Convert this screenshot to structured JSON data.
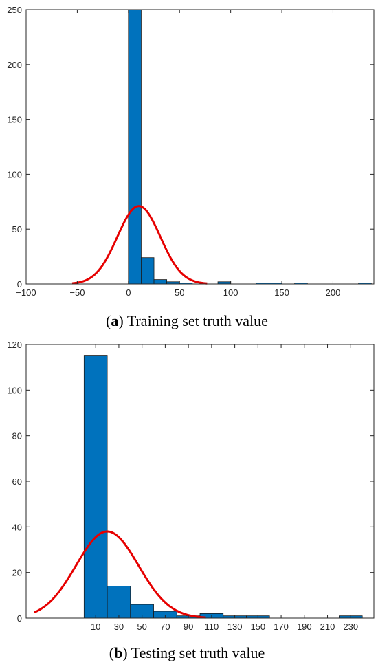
{
  "colors": {
    "bar": "#0072BD",
    "curve": "#E60000",
    "axis": "#262626"
  },
  "captions": [
    {
      "letter": "a",
      "text": "Training set truth value"
    },
    {
      "letter": "b",
      "text": "Testing set truth value"
    }
  ],
  "chart_data": [
    {
      "type": "bar",
      "xlim": [
        -100,
        240
      ],
      "ylim": [
        0,
        250
      ],
      "xticks": [
        -100,
        -50,
        0,
        50,
        100,
        150,
        200
      ],
      "xtick_labels": [
        "−100",
        "−50",
        "0",
        "50",
        "100",
        "150",
        "200"
      ],
      "yticks": [
        0,
        50,
        100,
        150,
        200,
        250
      ],
      "grid": false,
      "bins": [
        {
          "x0": 0,
          "x1": 12.5,
          "count": 250
        },
        {
          "x0": 12.5,
          "x1": 25,
          "count": 24
        },
        {
          "x0": 25,
          "x1": 37.5,
          "count": 4
        },
        {
          "x0": 37.5,
          "x1": 50,
          "count": 2
        },
        {
          "x0": 50,
          "x1": 62.5,
          "count": 1
        },
        {
          "x0": 62.5,
          "x1": 75,
          "count": 0
        },
        {
          "x0": 75,
          "x1": 87.5,
          "count": 0
        },
        {
          "x0": 87.5,
          "x1": 100,
          "count": 2
        },
        {
          "x0": 112.5,
          "x1": 125,
          "count": 0
        },
        {
          "x0": 125,
          "x1": 137.5,
          "count": 1
        },
        {
          "x0": 137.5,
          "x1": 150,
          "count": 1
        },
        {
          "x0": 162.5,
          "x1": 175,
          "count": 1
        },
        {
          "x0": 225,
          "x1": 237.5,
          "count": 1
        }
      ],
      "fit_curve": {
        "mean": 10.2,
        "sd": 21,
        "peak": 71,
        "x_range": [
          -55,
          77
        ]
      }
    },
    {
      "type": "bar",
      "xlim": [
        -50,
        250
      ],
      "ylim": [
        0,
        120
      ],
      "xticks": [
        10,
        30,
        50,
        70,
        90,
        110,
        130,
        150,
        170,
        190,
        210,
        230
      ],
      "xtick_labels": [
        "10",
        "30",
        "50",
        "70",
        "90",
        "110",
        "130",
        "150",
        "170",
        "190",
        "210",
        "230"
      ],
      "yticks": [
        0,
        20,
        40,
        60,
        80,
        100,
        120
      ],
      "grid": false,
      "bins": [
        {
          "x0": 0,
          "x1": 20,
          "count": 115
        },
        {
          "x0": 20,
          "x1": 40,
          "count": 14
        },
        {
          "x0": 40,
          "x1": 60,
          "count": 6
        },
        {
          "x0": 60,
          "x1": 80,
          "count": 3
        },
        {
          "x0": 80,
          "x1": 100,
          "count": 1
        },
        {
          "x0": 100,
          "x1": 120,
          "count": 2
        },
        {
          "x0": 120,
          "x1": 140,
          "count": 1
        },
        {
          "x0": 140,
          "x1": 160,
          "count": 1
        },
        {
          "x0": 220,
          "x1": 240,
          "count": 1
        }
      ],
      "fit_curve": {
        "mean": 20,
        "sd": 27,
        "peak": 38,
        "x_range": [
          -43,
          105
        ]
      }
    }
  ]
}
